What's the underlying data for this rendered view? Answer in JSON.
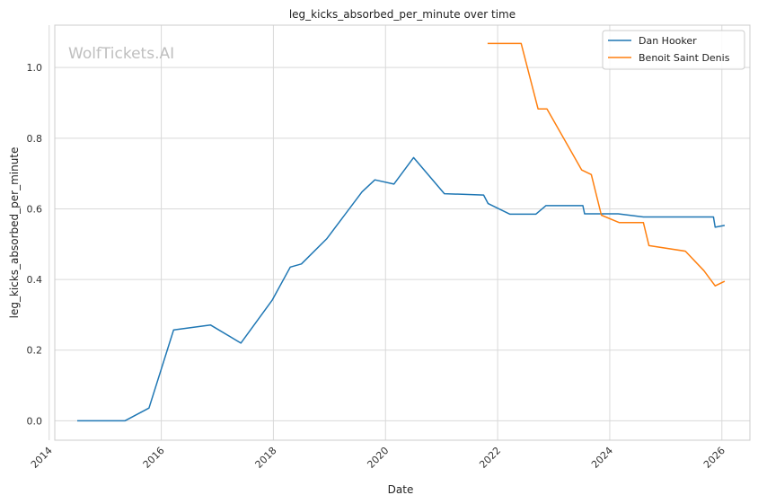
{
  "chart_data": {
    "type": "line",
    "title": "leg_kicks_absorbed_per_minute over time",
    "xlabel": "Date",
    "ylabel": "leg_kicks_absorbed_per_minute",
    "watermark": "WolfTickets.AI",
    "x_ticks": [
      "2014",
      "2016",
      "2018",
      "2020",
      "2022",
      "2024",
      "2026"
    ],
    "y_ticks": [
      "0.0",
      "0.2",
      "0.4",
      "0.6",
      "0.8",
      "1.0"
    ],
    "xlim": [
      2014.1,
      2026.5
    ],
    "ylim": [
      -0.055,
      1.12
    ],
    "grid": true,
    "legend_position": "top-right",
    "series": [
      {
        "name": "Dan Hooker",
        "color": "#1f77b4",
        "points": [
          [
            2014.5,
            0.0
          ],
          [
            2015.35,
            0.0
          ],
          [
            2015.78,
            0.036
          ],
          [
            2016.22,
            0.257
          ],
          [
            2016.88,
            0.271
          ],
          [
            2017.42,
            0.22
          ],
          [
            2017.98,
            0.342
          ],
          [
            2018.3,
            0.435
          ],
          [
            2018.5,
            0.444
          ],
          [
            2018.95,
            0.515
          ],
          [
            2019.58,
            0.648
          ],
          [
            2019.81,
            0.682
          ],
          [
            2020.15,
            0.67
          ],
          [
            2020.5,
            0.745
          ],
          [
            2021.05,
            0.643
          ],
          [
            2021.75,
            0.639
          ],
          [
            2021.83,
            0.615
          ],
          [
            2022.22,
            0.585
          ],
          [
            2022.68,
            0.585
          ],
          [
            2022.86,
            0.609
          ],
          [
            2023.52,
            0.609
          ],
          [
            2023.55,
            0.586
          ],
          [
            2024.15,
            0.586
          ],
          [
            2024.6,
            0.577
          ],
          [
            2025.85,
            0.577
          ],
          [
            2025.88,
            0.548
          ],
          [
            2026.05,
            0.553
          ]
        ]
      },
      {
        "name": "Benoit Saint Denis",
        "color": "#ff7f0e",
        "points": [
          [
            2021.82,
            1.068
          ],
          [
            2022.42,
            1.068
          ],
          [
            2022.72,
            0.883
          ],
          [
            2022.88,
            0.883
          ],
          [
            2023.5,
            0.71
          ],
          [
            2023.67,
            0.697
          ],
          [
            2023.85,
            0.582
          ],
          [
            2024.17,
            0.561
          ],
          [
            2024.6,
            0.561
          ],
          [
            2024.7,
            0.496
          ],
          [
            2025.35,
            0.48
          ],
          [
            2025.68,
            0.425
          ],
          [
            2025.88,
            0.382
          ],
          [
            2026.05,
            0.395
          ]
        ]
      }
    ]
  }
}
